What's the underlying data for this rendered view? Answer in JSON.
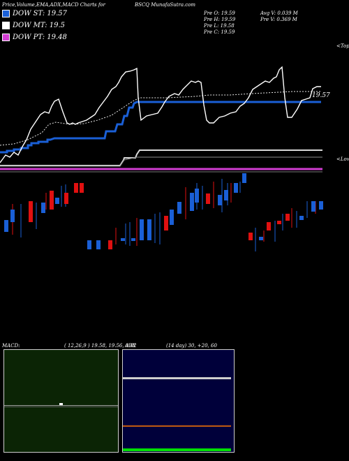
{
  "header": {
    "left_title": "Price,Volume,EMA,ADX,MACD Charts for",
    "symbol_site": "BSCQ MunafaSutra.com",
    "stats": {
      "pre_o": "Pre   O: 19.59",
      "pre_h": "Pre   H: 19.59",
      "pre_l": "Pre   L: 19.58",
      "pre_c": "Pre   C: 19.59",
      "avg_v": "Avg V: 0.039 M",
      "pre_v": "Pre   V: 0.369 M"
    }
  },
  "legend": [
    {
      "label": "DOW ST: 19.57",
      "color": "#1a5fd6"
    },
    {
      "label": "DOW MT: 19.5",
      "color": "#ffffff"
    },
    {
      "label": "DOW PT: 19.48",
      "color": "#d23cd2"
    }
  ],
  "annotations": {
    "top": "<Tope",
    "lower": "<Lowe",
    "price_label": "19.57"
  },
  "macd_panel": {
    "label": "MACD:",
    "params": "( 12,26,9 ) 19.58,  19.56,  0.02"
  },
  "adx_panel": {
    "label": "ADX",
    "params": "(14  day) 30,  +20,  60"
  },
  "colors": {
    "up": "#1a5fd6",
    "down": "#e01010",
    "price_line": "#ffffff",
    "dow_st": "#1a5fd6",
    "dow_mt": "#ffffff",
    "dow_pt": "#d23cd2",
    "macd_bg": "#0b2405",
    "adx_bg": "#00003a",
    "adx_white": "#cfcfcf",
    "adx_orange": "#c05a10",
    "adx_green": "#00e000"
  },
  "chart_data": [
    {
      "type": "line",
      "series": [
        {
          "name": "DOW ST",
          "values": [
            19.57
          ]
        },
        {
          "name": "DOW MT",
          "values": [
            19.5
          ]
        },
        {
          "name": "DOW PT",
          "values": [
            19.48
          ]
        }
      ]
    },
    {
      "type": "bar",
      "title": "MACD:",
      "params": [
        12,
        26,
        9
      ],
      "values": [
        19.58,
        19.56,
        0.02
      ]
    },
    {
      "type": "line",
      "title": "ADX",
      "period_days": 14,
      "values": [
        30,
        20,
        60
      ]
    }
  ]
}
